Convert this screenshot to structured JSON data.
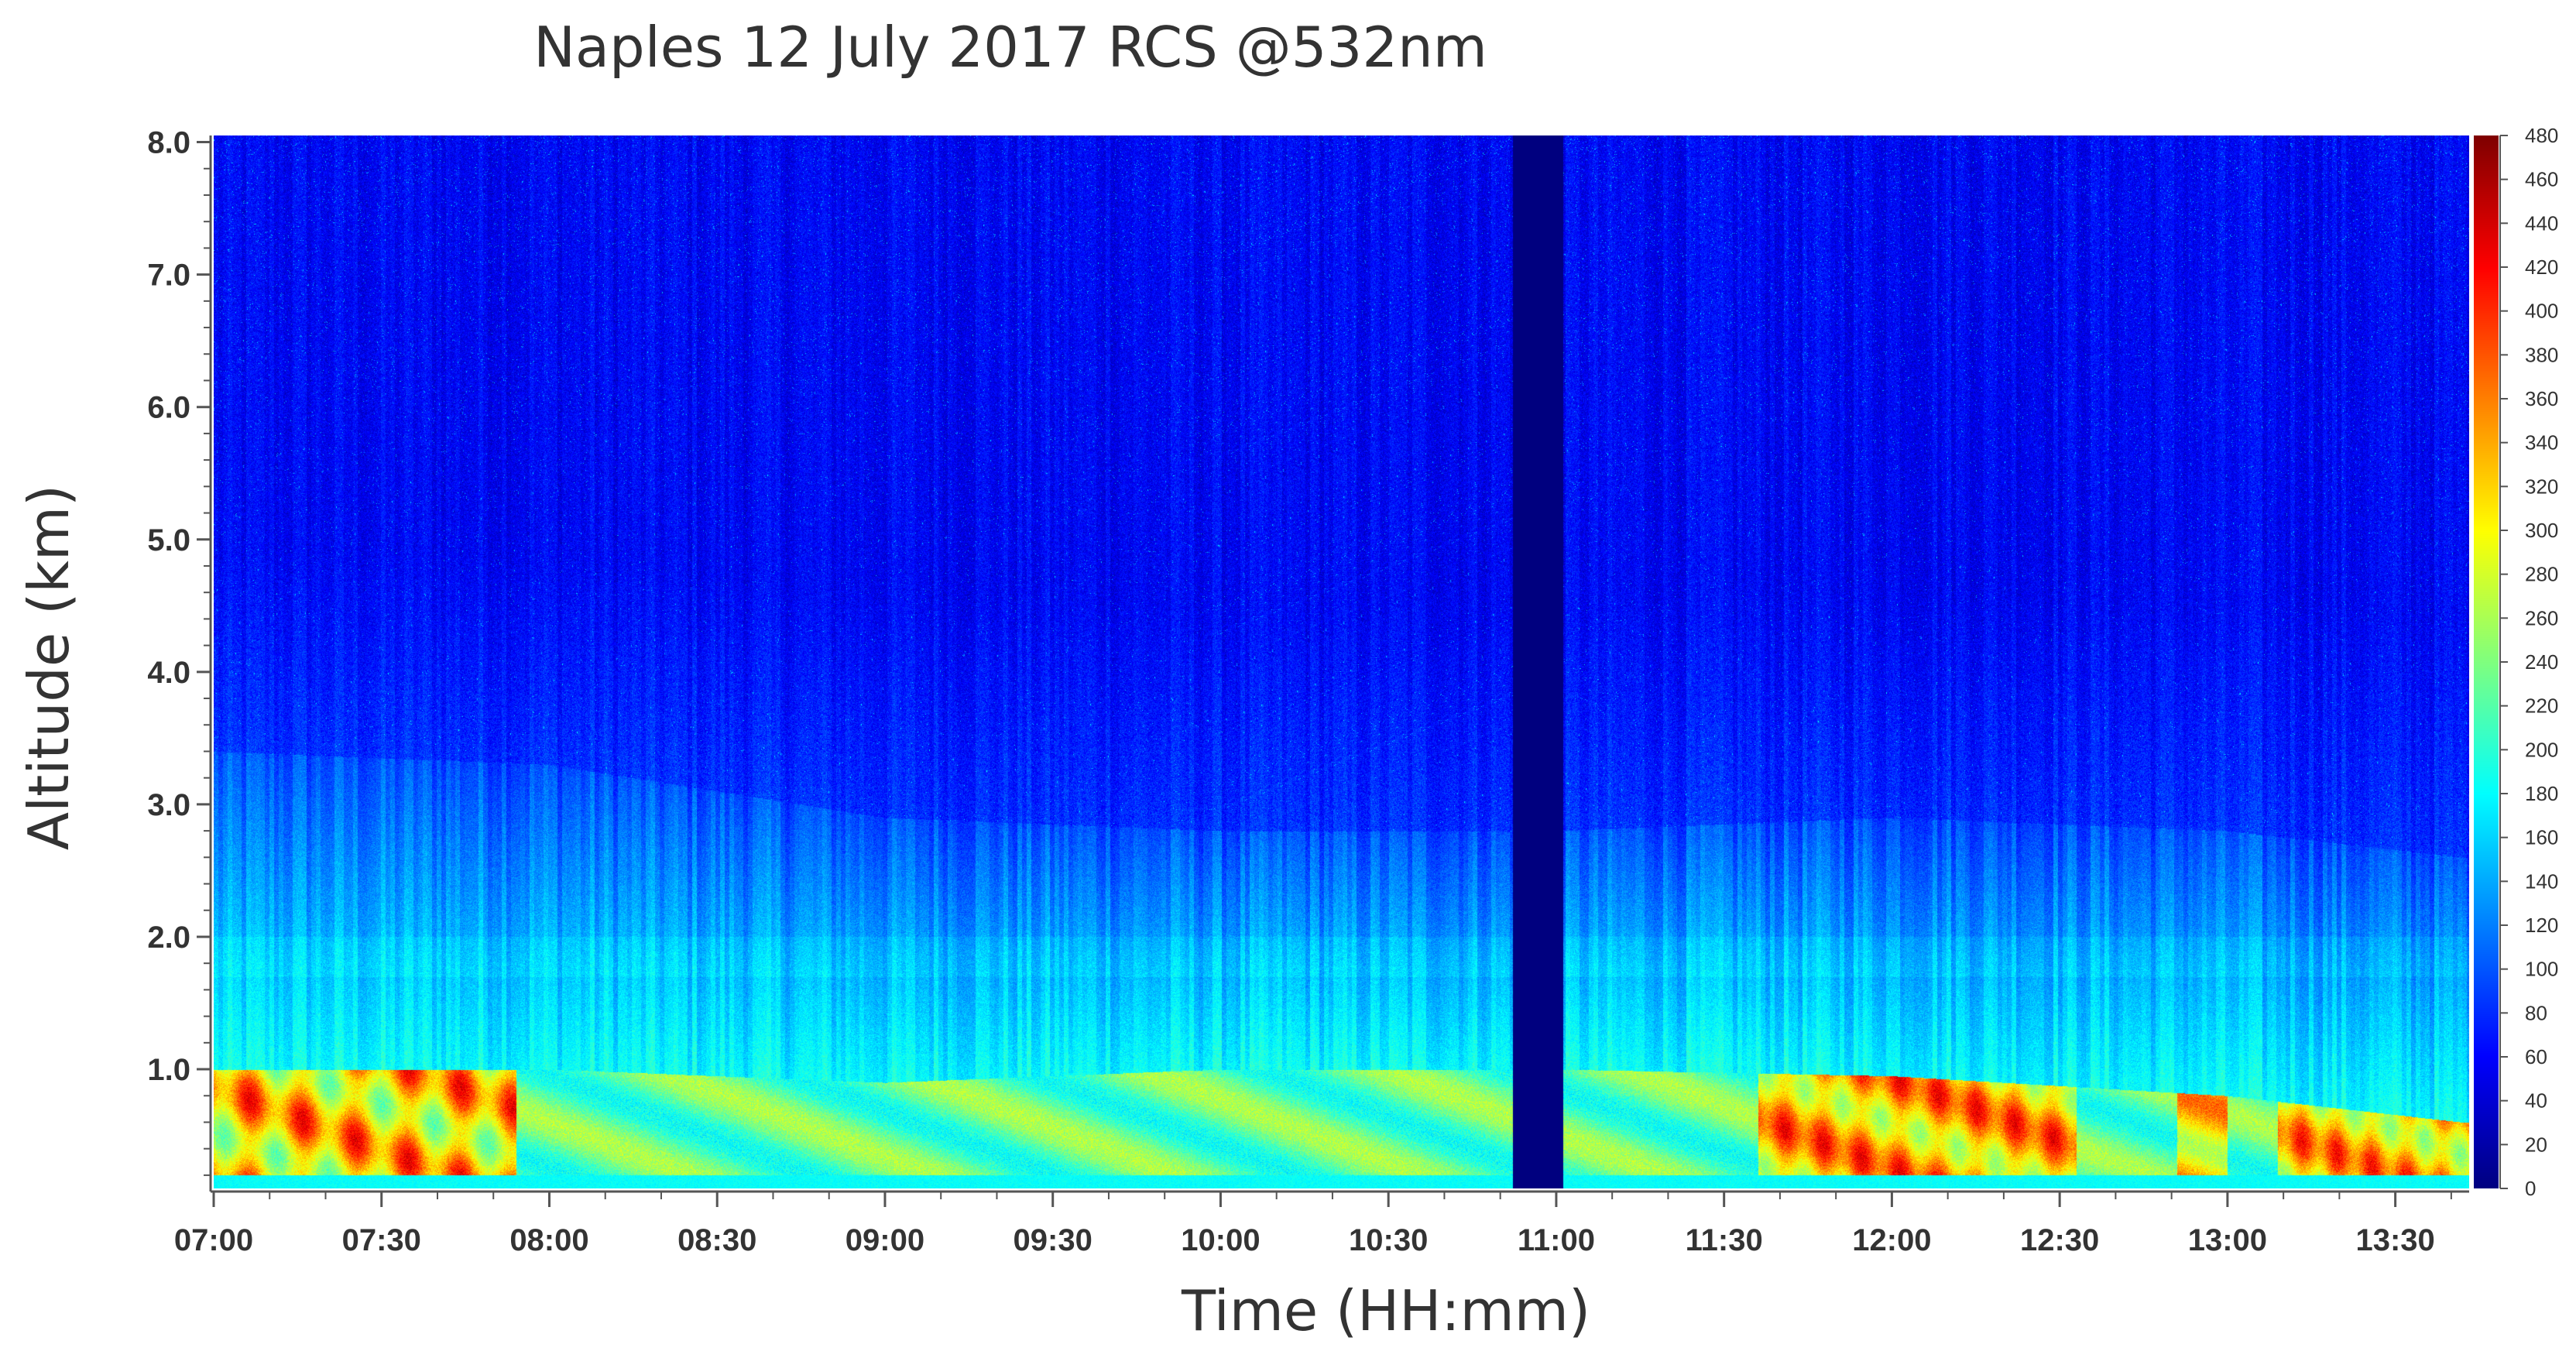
{
  "chart_data": {
    "type": "heatmap",
    "title": "Naples 12 July 2017  RCS @532nm",
    "xlabel": "Time (HH:mm)",
    "ylabel": "Altitude (km)",
    "x_ticks": [
      "07:00",
      "07:30",
      "08:00",
      "08:30",
      "09:00",
      "09:30",
      "10:00",
      "10:30",
      "11:00",
      "11:30",
      "12:00",
      "12:30",
      "13:00",
      "13:30"
    ],
    "x_range_hours": [
      7.0,
      13.72
    ],
    "y_ticks": [
      "1.0",
      "2.0",
      "3.0",
      "4.0",
      "5.0",
      "6.0",
      "7.0",
      "8.0"
    ],
    "y_tick_values": [
      1.0,
      2.0,
      3.0,
      4.0,
      5.0,
      6.0,
      7.0,
      8.0
    ],
    "y_range_km": [
      0.1,
      8.05
    ],
    "colorbar": {
      "ticks": [
        "0",
        "20",
        "40",
        "60",
        "80",
        "100",
        "120",
        "140",
        "160",
        "180",
        "200",
        "220",
        "240",
        "260",
        "280",
        "300",
        "320",
        "340",
        "360",
        "380",
        "400",
        "420",
        "440",
        "460",
        "480"
      ],
      "tick_values": [
        0,
        20,
        40,
        60,
        80,
        100,
        120,
        140,
        160,
        180,
        200,
        220,
        240,
        260,
        280,
        300,
        320,
        340,
        360,
        380,
        400,
        420,
        440,
        460,
        480
      ],
      "range": [
        0,
        480
      ],
      "colormap": "jet"
    },
    "data_gap_hours": [
      10.87,
      11.02
    ],
    "features": {
      "boundary_layer_top_km": [
        {
          "time_hours": 7.0,
          "altitude_km": 1.0
        },
        {
          "time_hours": 8.0,
          "altitude_km": 1.0
        },
        {
          "time_hours": 9.0,
          "altitude_km": 0.9
        },
        {
          "time_hours": 10.0,
          "altitude_km": 1.0
        },
        {
          "time_hours": 11.0,
          "altitude_km": 1.0
        },
        {
          "time_hours": 12.0,
          "altitude_km": 0.95
        },
        {
          "time_hours": 13.0,
          "altitude_km": 0.8
        },
        {
          "time_hours": 13.7,
          "altitude_km": 0.6
        }
      ],
      "aerosol_layer_top_km": [
        {
          "time_hours": 7.0,
          "altitude_km": 3.4
        },
        {
          "time_hours": 8.0,
          "altitude_km": 3.3
        },
        {
          "time_hours": 9.0,
          "altitude_km": 2.9
        },
        {
          "time_hours": 10.0,
          "altitude_km": 2.8
        },
        {
          "time_hours": 11.0,
          "altitude_km": 2.8
        },
        {
          "time_hours": 12.0,
          "altitude_km": 2.9
        },
        {
          "time_hours": 13.0,
          "altitude_km": 2.8
        },
        {
          "time_hours": 13.7,
          "altitude_km": 2.6
        }
      ]
    }
  },
  "colors": {
    "gap": "#00007f",
    "text": "#333333",
    "axis": "#555555"
  }
}
